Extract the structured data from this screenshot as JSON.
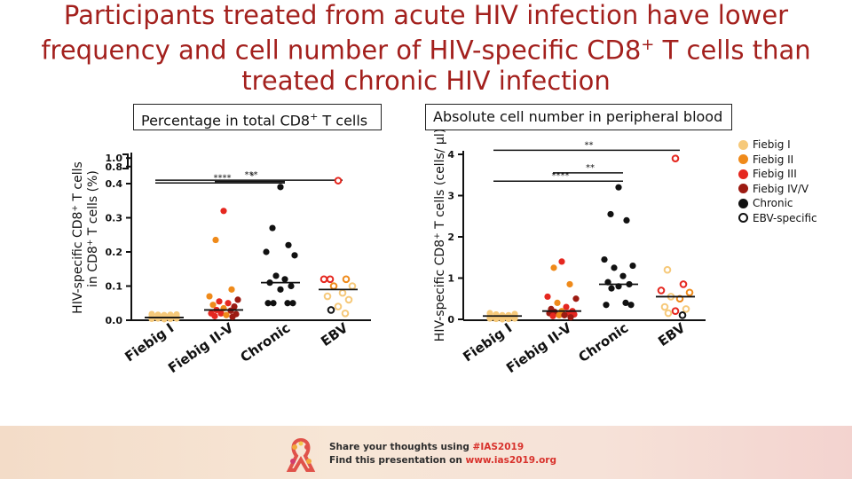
{
  "title": {
    "line1": "Participants treated from acute HIV infection have lower",
    "line2": "frequency and cell number of HIV-specific CD8+ T cells than",
    "line3": "treated chronic HIV infection"
  },
  "panels": {
    "left_label": "Percentage in total CD8+ T cells",
    "right_label": "Absolute cell number in peripheral blood"
  },
  "legend": [
    {
      "label": "Fiebig I",
      "color": "#f6c97a",
      "hollow": false
    },
    {
      "label": "Fiebig II",
      "color": "#ef8a1a",
      "hollow": false
    },
    {
      "label": "Fiebig III",
      "color": "#e5271f",
      "hollow": false
    },
    {
      "label": "Fiebig IV/V",
      "color": "#9c1b12",
      "hollow": false
    },
    {
      "label": "Chronic",
      "color": "#111111",
      "hollow": false
    },
    {
      "label": "EBV-specific",
      "color": "#111111",
      "hollow": true
    }
  ],
  "footer": {
    "line1_prefix": "Share your thoughts using ",
    "line1_highlight": "#IAS2019",
    "line2_prefix": "Find this presentation on ",
    "line2_highlight": "www.ias2019.org"
  },
  "chart_data": [
    {
      "type": "scatter",
      "ylabel_line1": "HIV-specific CD8",
      "ylabel_sup": "+",
      "ylabel_tail": " T cells",
      "ylabel_line2": "in CD8",
      "ylabel_line2_sup": "+",
      "ylabel_line2_tail": " T cells (%)",
      "y_ticks": [
        "0.0",
        "0.1",
        "0.2",
        "0.3",
        "0.4",
        "0.8",
        "1.0"
      ],
      "categories": [
        "Fiebig I",
        "Fiebig II-V",
        "Chronic",
        "EBV"
      ],
      "significance": [
        {
          "label": "***",
          "from": 0,
          "to": 3,
          "y": 0.48
        },
        {
          "label": "*",
          "from": 1,
          "to": 2,
          "y": 0.45
        },
        {
          "label": "****",
          "from": 0,
          "to": 2,
          "y": 0.415
        }
      ],
      "groups": [
        {
          "category": "Fiebig I",
          "median": 0.008,
          "points": [
            {
              "y": 0.018,
              "c": "#f6c97a"
            },
            {
              "y": 0.016,
              "c": "#f6c97a"
            },
            {
              "y": 0.015,
              "c": "#f6c97a"
            },
            {
              "y": 0.016,
              "c": "#f6c97a"
            },
            {
              "y": 0.017,
              "c": "#f6c97a"
            },
            {
              "y": 0.01,
              "c": "#f6c97a"
            },
            {
              "y": 0.009,
              "c": "#f6c97a"
            },
            {
              "y": 0.011,
              "c": "#f6c97a"
            },
            {
              "y": 0.01,
              "c": "#f6c97a"
            },
            {
              "y": 0.012,
              "c": "#f6c97a"
            },
            {
              "y": 0.004,
              "c": "#f6c97a"
            },
            {
              "y": 0.005,
              "c": "#f6c97a"
            },
            {
              "y": 0.003,
              "c": "#f6c97a"
            },
            {
              "y": 0.004,
              "c": "#f6c97a"
            },
            {
              "y": 0.005,
              "c": "#f6c97a"
            }
          ]
        },
        {
          "category": "Fiebig II-V",
          "median": 0.03,
          "points": [
            {
              "y": 0.32,
              "c": "#e5271f"
            },
            {
              "y": 0.235,
              "c": "#ef8a1a"
            },
            {
              "y": 0.09,
              "c": "#ef8a1a"
            },
            {
              "y": 0.07,
              "c": "#ef8a1a"
            },
            {
              "y": 0.06,
              "c": "#9c1b12"
            },
            {
              "y": 0.055,
              "c": "#e5271f"
            },
            {
              "y": 0.05,
              "c": "#e5271f"
            },
            {
              "y": 0.045,
              "c": "#ef8a1a"
            },
            {
              "y": 0.04,
              "c": "#9c1b12"
            },
            {
              "y": 0.035,
              "c": "#ef8a1a"
            },
            {
              "y": 0.03,
              "c": "#e5271f"
            },
            {
              "y": 0.028,
              "c": "#9c1b12"
            },
            {
              "y": 0.02,
              "c": "#e5271f"
            },
            {
              "y": 0.018,
              "c": "#9c1b12"
            },
            {
              "y": 0.02,
              "c": "#e5271f"
            },
            {
              "y": 0.015,
              "c": "#ef8a1a"
            },
            {
              "y": 0.012,
              "c": "#e5271f"
            },
            {
              "y": 0.01,
              "c": "#9c1b12"
            }
          ]
        },
        {
          "category": "Chronic",
          "median": 0.11,
          "points": [
            {
              "y": 0.39,
              "c": "#111111"
            },
            {
              "y": 0.27,
              "c": "#111111"
            },
            {
              "y": 0.22,
              "c": "#111111"
            },
            {
              "y": 0.2,
              "c": "#111111"
            },
            {
              "y": 0.19,
              "c": "#111111"
            },
            {
              "y": 0.13,
              "c": "#111111"
            },
            {
              "y": 0.12,
              "c": "#111111"
            },
            {
              "y": 0.11,
              "c": "#111111"
            },
            {
              "y": 0.1,
              "c": "#111111"
            },
            {
              "y": 0.09,
              "c": "#111111"
            },
            {
              "y": 0.05,
              "c": "#111111"
            },
            {
              "y": 0.05,
              "c": "#111111"
            },
            {
              "y": 0.05,
              "c": "#111111"
            },
            {
              "y": 0.05,
              "c": "#111111"
            }
          ]
        },
        {
          "category": "EBV",
          "median": 0.09,
          "points": [
            {
              "y": 0.47,
              "c": "#e5271f",
              "hollow": true
            },
            {
              "y": 0.12,
              "c": "#e5271f",
              "hollow": true
            },
            {
              "y": 0.12,
              "c": "#ef8a1a",
              "hollow": true
            },
            {
              "y": 0.12,
              "c": "#e5271f",
              "hollow": true
            },
            {
              "y": 0.1,
              "c": "#f6c97a",
              "hollow": true
            },
            {
              "y": 0.1,
              "c": "#ef8a1a",
              "hollow": true
            },
            {
              "y": 0.08,
              "c": "#f6c97a",
              "hollow": true
            },
            {
              "y": 0.07,
              "c": "#f6c97a",
              "hollow": true
            },
            {
              "y": 0.06,
              "c": "#f6c97a",
              "hollow": true
            },
            {
              "y": 0.04,
              "c": "#f6c97a",
              "hollow": true
            },
            {
              "y": 0.03,
              "c": "#111111",
              "hollow": true
            },
            {
              "y": 0.02,
              "c": "#f6c97a",
              "hollow": true
            }
          ]
        }
      ]
    },
    {
      "type": "scatter",
      "ylabel": "HIV-specific CD8+ T cells (cells/ µl)",
      "ylabel_line1": "HIV-specific CD8",
      "ylabel_sup": "+",
      "ylabel_tail": " T cells (cells/ µl)",
      "y_ticks": [
        "0",
        "1",
        "2",
        "3",
        "4"
      ],
      "ylim": [
        0,
        4.2
      ],
      "categories": [
        "Fiebig I",
        "Fiebig II-V",
        "Chronic",
        "EBV"
      ],
      "significance": [
        {
          "label": "**",
          "from": 0,
          "to": 3,
          "y": 4.1
        },
        {
          "label": "**",
          "from": 1,
          "to": 2,
          "y": 3.55
        },
        {
          "label": "****",
          "from": 0,
          "to": 2,
          "y": 3.35
        }
      ],
      "groups": [
        {
          "category": "Fiebig I",
          "median": 0.08,
          "points": [
            {
              "y": 0.15,
              "c": "#f6c97a"
            },
            {
              "y": 0.12,
              "c": "#f6c97a"
            },
            {
              "y": 0.1,
              "c": "#f6c97a"
            },
            {
              "y": 0.1,
              "c": "#f6c97a"
            },
            {
              "y": 0.13,
              "c": "#f6c97a"
            },
            {
              "y": 0.06,
              "c": "#f6c97a"
            },
            {
              "y": 0.05,
              "c": "#f6c97a"
            },
            {
              "y": 0.04,
              "c": "#f6c97a"
            },
            {
              "y": 0.05,
              "c": "#f6c97a"
            },
            {
              "y": 0.07,
              "c": "#f6c97a"
            },
            {
              "y": 0.02,
              "c": "#f6c97a"
            },
            {
              "y": 0.01,
              "c": "#f6c97a"
            },
            {
              "y": 0.0,
              "c": "#f6c97a"
            },
            {
              "y": 0.01,
              "c": "#f6c97a"
            },
            {
              "y": 0.02,
              "c": "#f6c97a"
            }
          ]
        },
        {
          "category": "Fiebig II-V",
          "median": 0.2,
          "points": [
            {
              "y": 1.4,
              "c": "#e5271f"
            },
            {
              "y": 1.25,
              "c": "#ef8a1a"
            },
            {
              "y": 0.85,
              "c": "#ef8a1a"
            },
            {
              "y": 0.55,
              "c": "#e5271f"
            },
            {
              "y": 0.5,
              "c": "#9c1b12"
            },
            {
              "y": 0.4,
              "c": "#ef8a1a"
            },
            {
              "y": 0.3,
              "c": "#e5271f"
            },
            {
              "y": 0.25,
              "c": "#9c1b12"
            },
            {
              "y": 0.2,
              "c": "#e5271f"
            },
            {
              "y": 0.2,
              "c": "#ef8a1a"
            },
            {
              "y": 0.18,
              "c": "#9c1b12"
            },
            {
              "y": 0.15,
              "c": "#e5271f"
            },
            {
              "y": 0.15,
              "c": "#9c1b12"
            },
            {
              "y": 0.12,
              "c": "#e5271f"
            },
            {
              "y": 0.1,
              "c": "#ef8a1a"
            },
            {
              "y": 0.1,
              "c": "#9c1b12"
            },
            {
              "y": 0.08,
              "c": "#e5271f"
            },
            {
              "y": 0.05,
              "c": "#9c1b12"
            }
          ]
        },
        {
          "category": "Chronic",
          "median": 0.85,
          "points": [
            {
              "y": 3.2,
              "c": "#111111"
            },
            {
              "y": 2.55,
              "c": "#111111"
            },
            {
              "y": 2.4,
              "c": "#111111"
            },
            {
              "y": 1.45,
              "c": "#111111"
            },
            {
              "y": 1.3,
              "c": "#111111"
            },
            {
              "y": 1.25,
              "c": "#111111"
            },
            {
              "y": 1.05,
              "c": "#111111"
            },
            {
              "y": 0.9,
              "c": "#111111"
            },
            {
              "y": 0.85,
              "c": "#111111"
            },
            {
              "y": 0.8,
              "c": "#111111"
            },
            {
              "y": 0.75,
              "c": "#111111"
            },
            {
              "y": 0.4,
              "c": "#111111"
            },
            {
              "y": 0.35,
              "c": "#111111"
            },
            {
              "y": 0.35,
              "c": "#111111"
            }
          ]
        },
        {
          "category": "EBV",
          "median": 0.55,
          "points": [
            {
              "y": 3.9,
              "c": "#e5271f",
              "hollow": true
            },
            {
              "y": 1.2,
              "c": "#f6c97a",
              "hollow": true
            },
            {
              "y": 0.85,
              "c": "#e5271f",
              "hollow": true
            },
            {
              "y": 0.7,
              "c": "#e5271f",
              "hollow": true
            },
            {
              "y": 0.65,
              "c": "#ef8a1a",
              "hollow": true
            },
            {
              "y": 0.55,
              "c": "#f6c97a",
              "hollow": true
            },
            {
              "y": 0.5,
              "c": "#ef8a1a",
              "hollow": true
            },
            {
              "y": 0.3,
              "c": "#f6c97a",
              "hollow": true
            },
            {
              "y": 0.25,
              "c": "#f6c97a",
              "hollow": true
            },
            {
              "y": 0.2,
              "c": "#e5271f",
              "hollow": true
            },
            {
              "y": 0.15,
              "c": "#f6c97a",
              "hollow": true
            },
            {
              "y": 0.1,
              "c": "#111111",
              "hollow": true
            }
          ]
        }
      ]
    }
  ]
}
